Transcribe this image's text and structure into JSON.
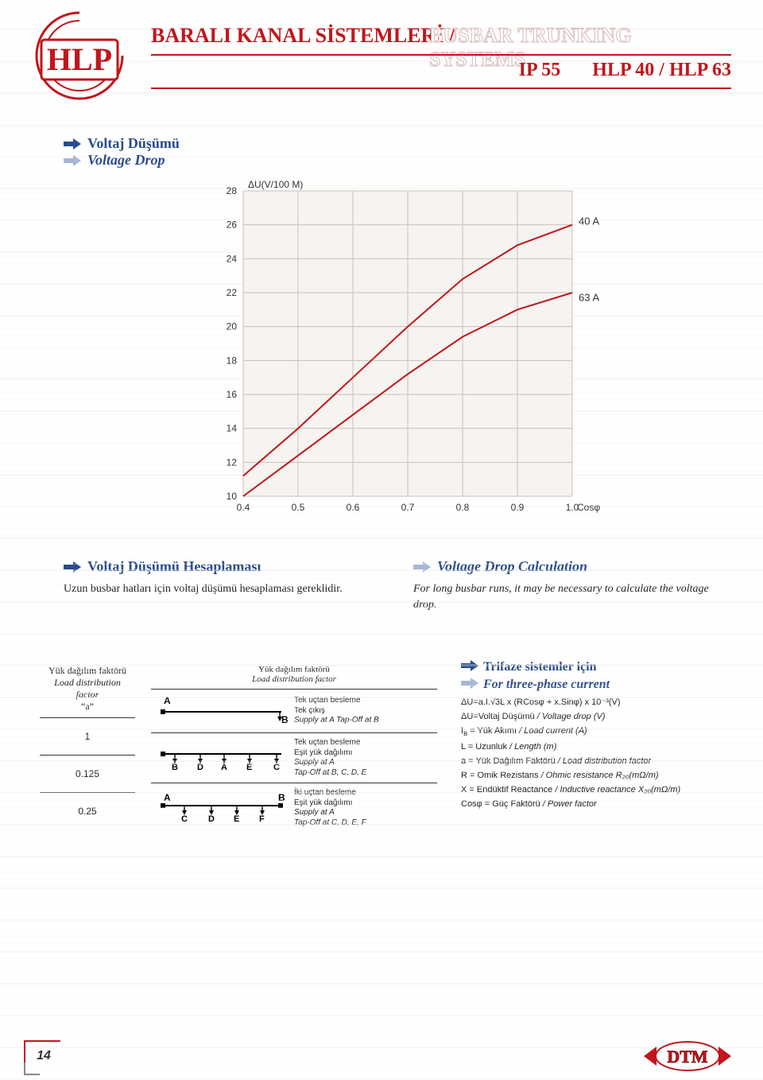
{
  "header": {
    "logo_text": "HLP",
    "title_tr": "BARALI KANAL SİSTEMLERİ",
    "sep": " / ",
    "title_en": "BUSBAR TRUNKING SYSTEMS",
    "sub_left": "IP 55",
    "sub_right": "HLP 40 / HLP 63"
  },
  "voltage_drop": {
    "heading_tr": "Voltaj Düşümü",
    "heading_en": "Voltage Drop"
  },
  "chart": {
    "type": "line",
    "y_label": "ΔU(V/100 M)",
    "y_ticks": [
      10,
      12,
      14,
      16,
      18,
      20,
      22,
      24,
      26,
      28
    ],
    "x_ticks": [
      "0.4",
      "0.5",
      "0.6",
      "0.7",
      "0.8",
      "0.9",
      "1.0"
    ],
    "x_label_suffix": "Cosφ",
    "y_min": 10,
    "y_max": 28,
    "x_min": 0.4,
    "x_max": 1.0,
    "background_color": "#f6f3f0",
    "grid_color": "#c7c2b8",
    "line_color": "#c1161c",
    "line_width": 2,
    "series": [
      {
        "label": "40 A",
        "points": [
          [
            0.4,
            11.2
          ],
          [
            0.5,
            14.0
          ],
          [
            0.6,
            17.0
          ],
          [
            0.7,
            20.0
          ],
          [
            0.8,
            22.8
          ],
          [
            0.9,
            24.8
          ],
          [
            1.0,
            26.0
          ]
        ]
      },
      {
        "label": "63 A",
        "points": [
          [
            0.4,
            10.0
          ],
          [
            0.5,
            12.4
          ],
          [
            0.6,
            14.8
          ],
          [
            0.7,
            17.2
          ],
          [
            0.8,
            19.4
          ],
          [
            0.9,
            21.0
          ],
          [
            1.0,
            22.0
          ]
        ]
      }
    ],
    "label_40A": "40 A",
    "label_63A": "63 A"
  },
  "calc_tr": {
    "heading": "Voltaj Düşümü Hesaplaması",
    "body": "Uzun busbar hatları için voltaj düşümü hesaplaması gereklidir."
  },
  "calc_en": {
    "heading": "Voltage Drop Calculation",
    "body": "For long busbar runs, it may be necessary to calculate the voltage drop."
  },
  "factor_table": {
    "hdr_tr": "Yük dağılım faktörü",
    "hdr_en": "Load distribution factor",
    "hdr_sym": "“a”",
    "rows": [
      "1",
      "0.125",
      "0.25"
    ]
  },
  "diagrams": {
    "hdr_tr": "Yük dağılım faktörü",
    "hdr_en": "Load distribution factor",
    "rows": [
      {
        "letters_top": [
          "A"
        ],
        "letters_bottom_right": [
          "B"
        ],
        "text_tr1": "Tek uçtan besleme",
        "text_tr2": "Tek çıkış",
        "text_en": "Supply at A Tap-Off at B"
      },
      {
        "letters_bottom": [
          "B",
          "D",
          "A",
          "E",
          "C"
        ],
        "text_tr1": "Tek uçtan besleme",
        "text_tr2": "Eşit yük dağılımı",
        "text_en1": "Supply at A",
        "text_en2": "Tap-Off at B, C, D, E"
      },
      {
        "letters_top": [
          "A"
        ],
        "letters_top_right": [
          "B"
        ],
        "letters_bottom": [
          "C",
          "D",
          "E",
          "F"
        ],
        "text_tr1": "İki uçtan besleme",
        "text_tr2": "Eşit yük dağılımı",
        "text_en1": "Supply at A",
        "text_en2": "Tap-Off at C, D, E, F"
      }
    ]
  },
  "formula": {
    "heading_tr": "Trifaze sistemler için",
    "heading_en": "For three-phase current",
    "f1": "ΔU=a.I.√3L x (RCosφ + x.Sinφ) x 10⁻³(V)",
    "lines": [
      {
        "sym": "ΔU",
        "tr": "=Voltaj Düşümü",
        "en": " / Voltage drop (V)"
      },
      {
        "sym": "I_B",
        "tr": " = Yük Akımı",
        "en": " / Load current (A)"
      },
      {
        "sym": "L",
        "tr": " = Uzunluk",
        "en": " / Length (m)"
      },
      {
        "sym": "a",
        "tr": " = Yük Dağılım Faktörü",
        "en": " / Load distribution factor"
      },
      {
        "sym": "R",
        "tr": " = Omik Rezistans",
        "en": " / Ohmic resistance R₂₀(mΩ/m)"
      },
      {
        "sym": "X",
        "tr": " = Endüktif Reactance",
        "en": " / Inductive reactance X₂₀(mΩ/m)"
      },
      {
        "sym": "Cosφ",
        "tr": " = Güç Faktörü",
        "en": " / Power factor"
      }
    ]
  },
  "footer": {
    "page": "14",
    "dtm": "DTM"
  },
  "colors": {
    "red": "#c1161c",
    "blue": "#2a4b8d",
    "grid": "#c7c2b8",
    "chart_bg": "#f6f3f0"
  }
}
